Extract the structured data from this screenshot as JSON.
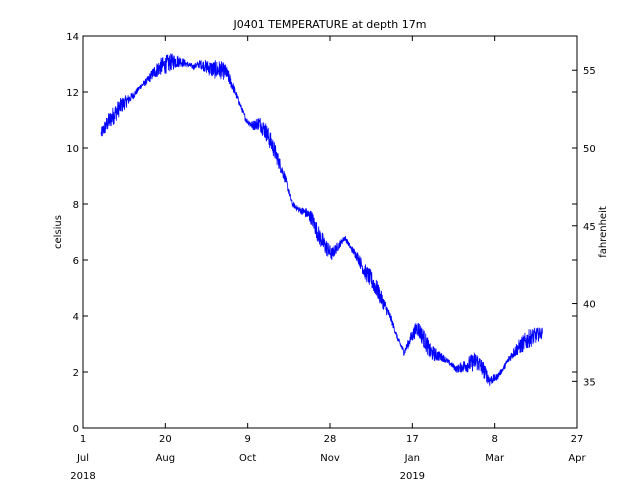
{
  "chart_data": {
    "type": "line",
    "title": "J0401 TEMPERATURE at depth 17m",
    "ylabel": "celsius",
    "ylabel_right": "fahrenheit",
    "xlabel": "",
    "line_color": "#0000ff",
    "grid": false,
    "ylim": [
      0,
      14
    ],
    "yticks": [
      0,
      2,
      4,
      6,
      8,
      10,
      12,
      14
    ],
    "ylim_right": [
      32,
      57.2
    ],
    "yticks_right": [
      35,
      40,
      45,
      50,
      55
    ],
    "xlim": [
      "2018-07-01",
      "2019-04-27"
    ],
    "xticks": [
      {
        "date": "2018-07-01",
        "day": "1",
        "month": "Jul",
        "year": "2018"
      },
      {
        "date": "2018-08-20",
        "day": "20",
        "month": "Aug",
        "year": ""
      },
      {
        "date": "2018-10-09",
        "day": "9",
        "month": "Oct",
        "year": ""
      },
      {
        "date": "2018-11-28",
        "day": "28",
        "month": "Nov",
        "year": ""
      },
      {
        "date": "2019-01-17",
        "day": "17",
        "month": "Jan",
        "year": "2019"
      },
      {
        "date": "2019-03-08",
        "day": "8",
        "month": "Mar",
        "year": ""
      },
      {
        "date": "2019-04-27",
        "day": "27",
        "month": "Apr",
        "year": ""
      }
    ],
    "series": [
      {
        "x": [
          "2018-07-12",
          "2018-07-16",
          "2018-07-20",
          "2018-07-24",
          "2018-07-28",
          "2018-08-01",
          "2018-08-05",
          "2018-08-09",
          "2018-08-13",
          "2018-08-17",
          "2018-08-21",
          "2018-08-25",
          "2018-08-29",
          "2018-09-02",
          "2018-09-06",
          "2018-09-10",
          "2018-09-14",
          "2018-09-18",
          "2018-09-22",
          "2018-09-26",
          "2018-09-30",
          "2018-10-04",
          "2018-10-08",
          "2018-10-12",
          "2018-10-16",
          "2018-10-20",
          "2018-10-24",
          "2018-10-28",
          "2018-11-01",
          "2018-11-05",
          "2018-11-09",
          "2018-11-13",
          "2018-11-17",
          "2018-11-21",
          "2018-11-25",
          "2018-11-29",
          "2018-12-03",
          "2018-12-07",
          "2018-12-11",
          "2018-12-15",
          "2018-12-19",
          "2018-12-23",
          "2018-12-27",
          "2018-12-31",
          "2019-01-04",
          "2019-01-08",
          "2019-01-12",
          "2019-01-16",
          "2019-01-20",
          "2019-01-24",
          "2019-01-28",
          "2019-02-01",
          "2019-02-05",
          "2019-02-09",
          "2019-02-13",
          "2019-02-17",
          "2019-02-21",
          "2019-02-25",
          "2019-03-01",
          "2019-03-05",
          "2019-03-09",
          "2019-03-13",
          "2019-03-17",
          "2019-03-21",
          "2019-03-25",
          "2019-03-29",
          "2019-04-02",
          "2019-04-06"
        ],
        "values": [
          10.5,
          10.9,
          11.2,
          11.5,
          11.7,
          11.9,
          12.2,
          12.4,
          12.7,
          12.9,
          13.0,
          13.1,
          13.1,
          13.0,
          12.9,
          13.0,
          12.9,
          12.8,
          12.8,
          12.7,
          12.2,
          11.6,
          11.0,
          10.8,
          10.9,
          10.6,
          10.1,
          9.5,
          8.9,
          8.0,
          7.8,
          7.7,
          7.5,
          6.9,
          6.5,
          6.2,
          6.5,
          6.8,
          6.4,
          6.1,
          5.6,
          5.3,
          4.9,
          4.4,
          3.9,
          3.2,
          2.7,
          3.2,
          3.6,
          3.2,
          2.7,
          2.6,
          2.5,
          2.3,
          2.1,
          2.2,
          2.3,
          2.4,
          2.1,
          1.7,
          1.8,
          2.1,
          2.5,
          2.8,
          3.0,
          3.2,
          3.3,
          3.4
        ]
      }
    ]
  }
}
